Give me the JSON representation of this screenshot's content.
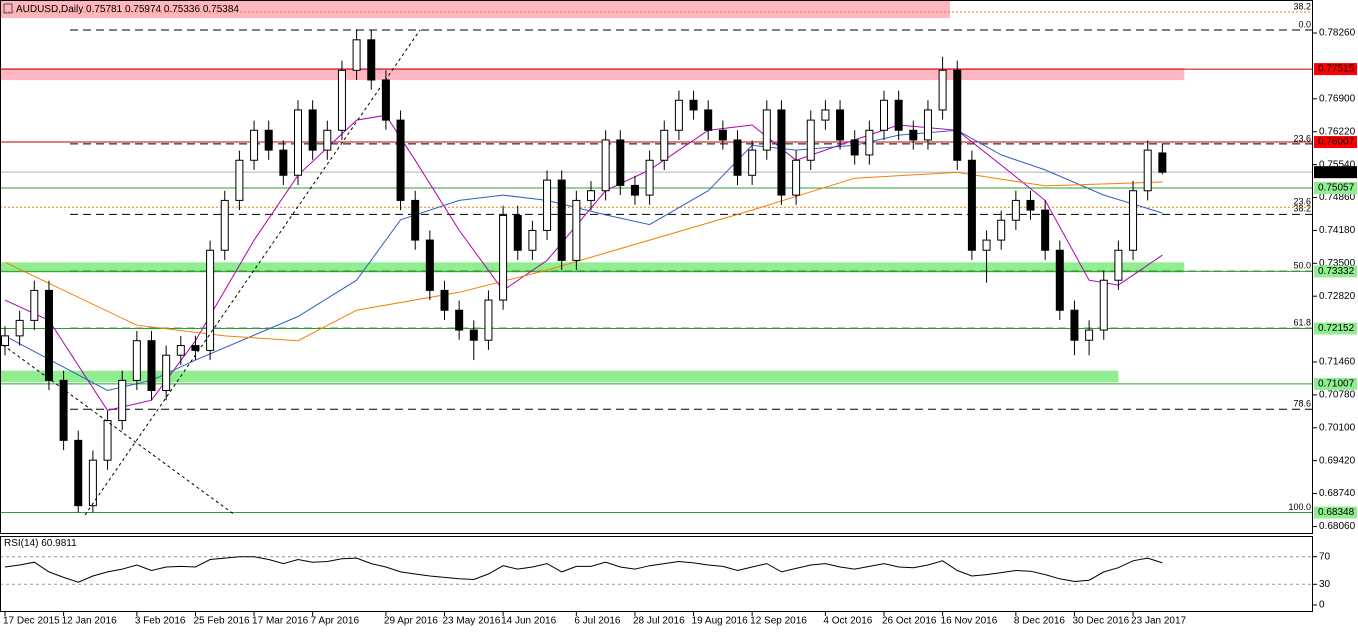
{
  "chart_data": [
    {
      "type": "candlestick",
      "title": "AUDUSD,Daily",
      "categories": [
        "17 Dec 2015",
        null,
        null,
        null,
        "12 Jan 2016",
        null,
        null,
        null,
        null,
        "3 Feb 2016",
        null,
        null,
        null,
        "25 Feb 2016",
        null,
        null,
        null,
        "17 Mar 2016",
        null,
        null,
        null,
        "7 Apr 2016",
        null,
        null,
        null,
        null,
        "29 Apr 2016",
        null,
        null,
        null,
        "23 May 2016",
        null,
        null,
        null,
        "14 Jun 2016",
        null,
        null,
        null,
        null,
        "6 Jul 2016",
        null,
        null,
        null,
        "28 Jul 2016",
        null,
        null,
        null,
        "19 Aug 2016",
        null,
        null,
        null,
        "12 Sep 2016",
        null,
        null,
        null,
        null,
        "4 Oct 2016",
        null,
        null,
        null,
        "26 Oct 2016",
        null,
        null,
        null,
        "16 Nov 2016",
        null,
        null,
        null,
        null,
        "8 Dec 2016",
        null,
        null,
        null,
        "30 Dec 2016",
        null,
        null,
        null,
        "23 Jan 2017",
        null,
        null
      ],
      "open": [
        0.718,
        0.72,
        0.7232,
        0.7294,
        0.7108,
        0.6984,
        0.6849,
        0.6943,
        0.7025,
        0.7108,
        0.719,
        0.7087,
        0.716,
        0.718,
        0.717,
        0.7377,
        0.748,
        0.7563,
        0.7625,
        0.7584,
        0.7532,
        0.7667,
        0.7584,
        0.7625,
        0.7749,
        0.7812,
        0.7729,
        0.7646,
        0.748,
        0.7398,
        0.7294,
        0.7253,
        0.7212,
        0.7191,
        0.7274,
        0.7449,
        0.7377,
        0.7418,
        0.7522,
        0.7356,
        0.748,
        0.75,
        0.7605,
        0.7511,
        0.7491,
        0.7563,
        0.7625,
        0.7687,
        0.7667,
        0.7625,
        0.7605,
        0.7532,
        0.7584,
        0.7667,
        0.7491,
        0.7563,
        0.7646,
        0.7667,
        0.7605,
        0.7574,
        0.7625,
        0.7687,
        0.7625,
        0.7605,
        0.7667,
        0.7749,
        0.7563,
        0.7377,
        0.7398,
        0.7439,
        0.748,
        0.746,
        0.7377,
        0.7253,
        0.7191,
        0.7212,
        0.7315,
        0.7377,
        0.75,
        0.75781
      ],
      "high": [
        0.722,
        0.7252,
        0.7314,
        0.7314,
        0.7128,
        0.7004,
        0.6963,
        0.7045,
        0.7128,
        0.721,
        0.721,
        0.718,
        0.72,
        0.72,
        0.7397,
        0.75,
        0.7583,
        0.7645,
        0.7645,
        0.7604,
        0.7687,
        0.7687,
        0.7645,
        0.7769,
        0.7834,
        0.7832,
        0.7749,
        0.7666,
        0.75,
        0.7418,
        0.7314,
        0.7273,
        0.7232,
        0.7294,
        0.7469,
        0.7469,
        0.7438,
        0.7542,
        0.7542,
        0.75,
        0.752,
        0.7625,
        0.7625,
        0.7531,
        0.7583,
        0.7645,
        0.7707,
        0.7707,
        0.7687,
        0.7645,
        0.7625,
        0.7604,
        0.7687,
        0.7687,
        0.7583,
        0.7666,
        0.7687,
        0.7687,
        0.7625,
        0.7645,
        0.7707,
        0.7707,
        0.7645,
        0.7687,
        0.7777,
        0.7769,
        0.7583,
        0.7418,
        0.7459,
        0.75,
        0.75,
        0.748,
        0.7397,
        0.7273,
        0.7232,
        0.7335,
        0.7397,
        0.752,
        0.7604,
        0.75974
      ],
      "low": [
        0.716,
        0.718,
        0.7212,
        0.7088,
        0.6964,
        0.6835,
        0.6835,
        0.6923,
        0.7005,
        0.7088,
        0.7067,
        0.7067,
        0.714,
        0.715,
        0.715,
        0.7357,
        0.746,
        0.7543,
        0.7564,
        0.7512,
        0.7512,
        0.7564,
        0.7564,
        0.7605,
        0.7729,
        0.7709,
        0.7626,
        0.746,
        0.7378,
        0.7274,
        0.7233,
        0.7192,
        0.715,
        0.7171,
        0.7254,
        0.7357,
        0.7357,
        0.7398,
        0.7336,
        0.7336,
        0.746,
        0.748,
        0.7491,
        0.7471,
        0.7471,
        0.7543,
        0.7605,
        0.7647,
        0.7605,
        0.7585,
        0.7512,
        0.7512,
        0.7564,
        0.7471,
        0.7471,
        0.7543,
        0.7626,
        0.7585,
        0.7554,
        0.7554,
        0.7605,
        0.7605,
        0.7585,
        0.7585,
        0.7647,
        0.7543,
        0.7357,
        0.731,
        0.7378,
        0.7419,
        0.744,
        0.7357,
        0.7233,
        0.716,
        0.716,
        0.7192,
        0.7295,
        0.7357,
        0.748,
        0.75336
      ],
      "close": [
        0.72,
        0.7232,
        0.7294,
        0.7108,
        0.6984,
        0.6849,
        0.6943,
        0.7025,
        0.7108,
        0.719,
        0.7087,
        0.716,
        0.718,
        0.717,
        0.7377,
        0.748,
        0.7563,
        0.7625,
        0.7584,
        0.7532,
        0.7667,
        0.7584,
        0.7625,
        0.7749,
        0.7812,
        0.7729,
        0.7646,
        0.748,
        0.7398,
        0.7294,
        0.7253,
        0.7212,
        0.7191,
        0.7274,
        0.7449,
        0.7377,
        0.7418,
        0.7522,
        0.7356,
        0.748,
        0.75,
        0.7605,
        0.7511,
        0.7491,
        0.7563,
        0.7625,
        0.7687,
        0.7667,
        0.7625,
        0.7605,
        0.7532,
        0.7584,
        0.7667,
        0.7491,
        0.7563,
        0.7646,
        0.7667,
        0.7605,
        0.7574,
        0.7625,
        0.7687,
        0.7625,
        0.7605,
        0.7667,
        0.7749,
        0.7563,
        0.7377,
        0.7398,
        0.7439,
        0.748,
        0.746,
        0.7377,
        0.7253,
        0.7191,
        0.7212,
        0.7315,
        0.7377,
        0.75,
        0.7584,
        0.75384
      ],
      "ylim": [
        0.67925,
        0.78943
      ],
      "yticks": [
        {
          "value": 0.7826,
          "label": "0.78260"
        },
        {
          "value": 0.769,
          "label": "0.76900"
        },
        {
          "value": 0.7622,
          "label": "0.76220"
        },
        {
          "value": 0.7554,
          "label": "0.75540"
        },
        {
          "value": 0.7486,
          "label": "0.74860"
        },
        {
          "value": 0.7418,
          "label": "0.74180"
        },
        {
          "value": 0.735,
          "label": "0.73500"
        },
        {
          "value": 0.7282,
          "label": "0.72820"
        },
        {
          "value": 0.7146,
          "label": "0.71460"
        },
        {
          "value": 0.7078,
          "label": "0.70780"
        },
        {
          "value": 0.701,
          "label": "0.70100"
        },
        {
          "value": 0.6942,
          "label": "0.69420"
        },
        {
          "value": 0.6874,
          "label": "0.68740"
        },
        {
          "value": 0.6806,
          "label": "0.68060"
        }
      ],
      "current_color": "#000000",
      "moving_averages": [
        {
          "color": "#b000b0",
          "x": [
            0,
            3,
            7,
            10,
            13,
            17,
            20,
            24,
            26,
            28,
            31,
            34,
            37,
            41,
            44,
            48,
            51,
            54,
            58,
            61,
            65,
            68,
            71,
            74,
            76,
            79
          ],
          "values": [
            0.7274,
            0.7232,
            0.7046,
            0.7067,
            0.719,
            0.7398,
            0.7532,
            0.7646,
            0.7656,
            0.7563,
            0.7418,
            0.7294,
            0.7356,
            0.75,
            0.7543,
            0.7625,
            0.7636,
            0.7563,
            0.7605,
            0.7636,
            0.7625,
            0.7553,
            0.748,
            0.7315,
            0.7305,
            0.7367
          ]
        },
        {
          "color": "#3060c0",
          "x": [
            0,
            7,
            10,
            13,
            20,
            24,
            27,
            31,
            34,
            37,
            41,
            44,
            48,
            51,
            54,
            58,
            61,
            65,
            68,
            71,
            75,
            79
          ],
          "values": [
            0.72,
            0.7087,
            0.7108,
            0.715,
            0.724,
            0.7315,
            0.744,
            0.748,
            0.7491,
            0.748,
            0.745,
            0.743,
            0.75,
            0.7594,
            0.7584,
            0.7594,
            0.7615,
            0.7625,
            0.7574,
            0.7543,
            0.7491,
            0.7454
          ]
        },
        {
          "color": "#f08000",
          "x": [
            0,
            9,
            15,
            20,
            24,
            31,
            37,
            44,
            51,
            58,
            65,
            71,
            79
          ],
          "values": [
            0.7352,
            0.7222,
            0.72,
            0.719,
            0.7253,
            0.729,
            0.7336,
            0.7398,
            0.746,
            0.7526,
            0.7538,
            0.751,
            0.7518
          ]
        }
      ],
      "zones": [
        {
          "color": "#ffb6c1",
          "range": [
            0.7857,
            0.7894
          ],
          "x": [
            0,
            64.5
          ]
        },
        {
          "color": "#ffb6c1",
          "range": [
            0.77288,
            0.77536
          ],
          "x": [
            0,
            80.5
          ]
        },
        {
          "color": "#90ee90",
          "range": [
            0.7331,
            0.7352
          ],
          "x": [
            0,
            80.5
          ]
        },
        {
          "color": "#90ee90",
          "range": [
            0.7104,
            0.7128
          ],
          "x": [
            0,
            76
          ]
        }
      ],
      "levels": [
        {
          "value": 0.77515,
          "color": "#ff0000",
          "text_color": "#ffffff"
        },
        {
          "value": 0.76007,
          "color": "#ff0000",
          "text_color": "#ffffff"
        },
        {
          "value": 0.75057,
          "color": "#90ee90",
          "text_color": "#000000"
        },
        {
          "value": 0.73332,
          "color": "#90ee90",
          "text_color": "#000000"
        },
        {
          "value": 0.72152,
          "color": "#90ee90",
          "text_color": "#000000"
        },
        {
          "value": 0.71007,
          "color": "#90ee90",
          "text_color": "#000000"
        },
        {
          "value": 0.68348,
          "color": "#90ee90",
          "text_color": "#000000"
        }
      ],
      "fib_levels": [
        {
          "level": {
            "value": 0,
            "label": "0.0"
          },
          "price": 0.78322,
          "color": "#000000"
        },
        {
          "level": 23.6,
          "price": 0.75968,
          "color": "#000000"
        },
        {
          "level": 38.2,
          "price": 0.74512,
          "color": "#000000"
        },
        {
          "level": {
            "value": 50,
            "label": "50.0"
          },
          "price": 0.73335,
          "color": "#000000"
        },
        {
          "level": 61.8,
          "price": 0.72158,
          "color": "#000000"
        },
        {
          "level": 78.6,
          "price": 0.70482,
          "color": "#000000"
        },
        {
          "level": {
            "value": 100,
            "label": "100.0"
          },
          "price": 0.68348,
          "color": "#000000"
        },
        {
          "level": 38.2,
          "price": 0.78694,
          "color": "#f08000"
        },
        {
          "level": 23.6,
          "price": 0.7466,
          "color": "#f08000"
        }
      ]
    },
    {
      "type": "line",
      "title": "RSI(14)",
      "color": "#000000",
      "grid": true,
      "values": [
        55,
        58,
        62,
        48,
        40,
        33,
        42,
        48,
        52,
        58,
        50,
        55,
        56,
        55,
        66,
        68,
        70,
        70,
        66,
        60,
        66,
        62,
        63,
        67,
        68,
        60,
        55,
        48,
        45,
        42,
        40,
        38,
        37,
        45,
        57,
        52,
        55,
        60,
        48,
        56,
        56,
        62,
        55,
        52,
        57,
        60,
        63,
        61,
        58,
        56,
        50,
        55,
        60,
        48,
        53,
        58,
        60,
        55,
        52,
        56,
        60,
        55,
        54,
        58,
        64,
        50,
        42,
        44,
        47,
        50,
        49,
        44,
        38,
        34,
        36,
        48,
        54,
        64,
        68,
        60.9811
      ],
      "ylim": [
        0,
        100
      ],
      "yticks": [
        0,
        30,
        70
      ]
    }
  ]
}
